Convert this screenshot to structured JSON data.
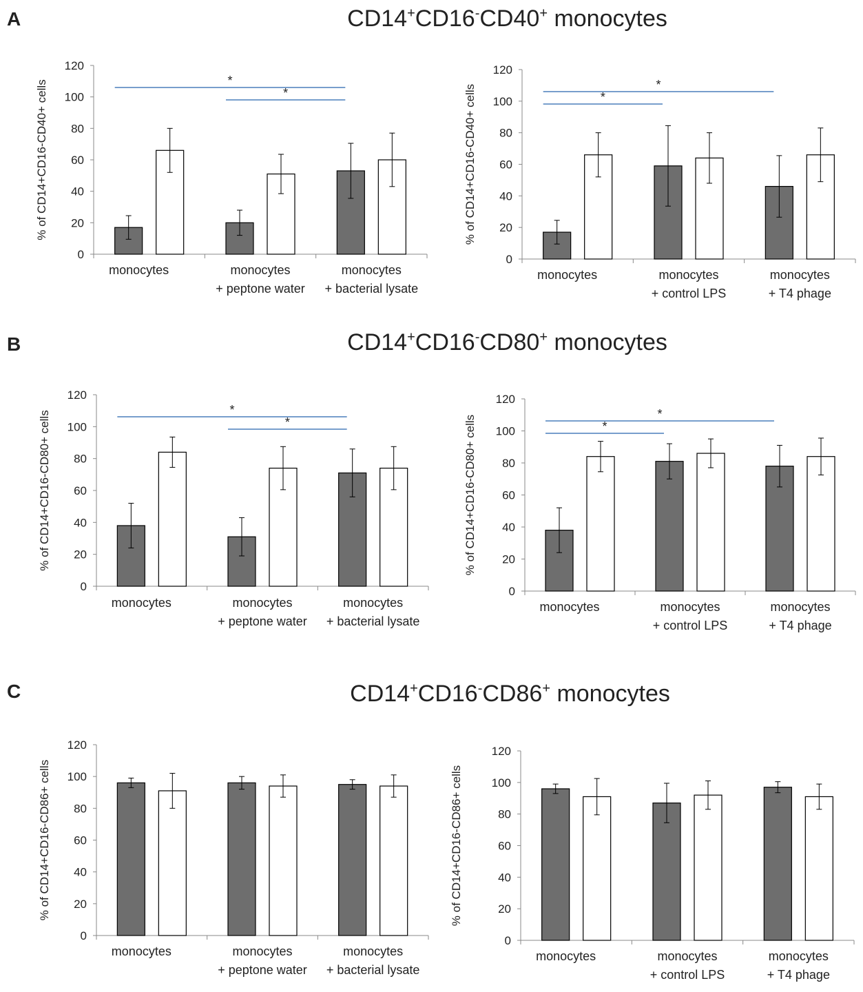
{
  "panels": [
    {
      "letter": "A",
      "title": {
        "a": "CD14",
        "sa": "+",
        "b": "CD16",
        "sb": "-",
        "c": "CD40",
        "sc": "+",
        "d": " monocytes"
      }
    },
    {
      "letter": "B",
      "title": {
        "a": "CD14",
        "sa": "+",
        "b": "CD16",
        "sb": "-",
        "c": "CD80",
        "sc": "+",
        "d": " monocytes"
      }
    },
    {
      "letter": "C",
      "title": {
        "a": "CD14",
        "sa": "+",
        "b": "CD16",
        "sb": "-",
        "c": "CD86",
        "sc": "+",
        "d": " monocytes"
      }
    }
  ],
  "colors": {
    "filled": "#6e6e6e",
    "open": "#ffffff",
    "bar_stroke": "#000000",
    "sig_line": "#4a7ebb",
    "axis": "#888888"
  },
  "chart_data": [
    {
      "id": "A-left",
      "type": "bar",
      "ylabel": "% of CD14+CD16-CD40+ cells",
      "ylim": [
        0,
        120
      ],
      "yticks": [
        0,
        20,
        40,
        60,
        80,
        100,
        120
      ],
      "categories": [
        [
          "monocytes"
        ],
        [
          "monocytes",
          "+ peptone water"
        ],
        [
          "monocytes",
          "+ bacterial lysate"
        ]
      ],
      "series": [
        {
          "name": "filled",
          "values": [
            17,
            20,
            53
          ],
          "errors": [
            7.5,
            8,
            17.5
          ]
        },
        {
          "name": "open",
          "values": [
            66,
            51,
            60
          ],
          "errors": [
            14,
            12.5,
            17
          ]
        }
      ],
      "significance": [
        {
          "from": 0,
          "to": 2,
          "level": 1,
          "label": "*"
        },
        {
          "from": 1,
          "to": 2,
          "level": 0,
          "label": "*"
        }
      ]
    },
    {
      "id": "A-right",
      "type": "bar",
      "ylabel": "% of CD14+CD16-CD40+ cells",
      "ylim": [
        0,
        120
      ],
      "yticks": [
        0,
        20,
        40,
        60,
        80,
        100,
        120
      ],
      "categories": [
        [
          "monocytes"
        ],
        [
          "monocytes",
          "+ control LPS"
        ],
        [
          "monocytes",
          "+ T4 phage"
        ]
      ],
      "series": [
        {
          "name": "filled",
          "values": [
            17,
            59,
            46
          ],
          "errors": [
            7.5,
            25.5,
            19.5
          ]
        },
        {
          "name": "open",
          "values": [
            66,
            64,
            66
          ],
          "errors": [
            14,
            16,
            17
          ]
        }
      ],
      "significance": [
        {
          "from": 0,
          "to": 2,
          "level": 1,
          "label": "*"
        },
        {
          "from": 0,
          "to": 1,
          "level": 0,
          "label": "*"
        }
      ]
    },
    {
      "id": "B-left",
      "type": "bar",
      "ylabel": "% of CD14+CD16-CD80+ cells",
      "ylim": [
        0,
        120
      ],
      "yticks": [
        0,
        20,
        40,
        60,
        80,
        100,
        120
      ],
      "categories": [
        [
          "monocytes"
        ],
        [
          "monocytes",
          "+ peptone water"
        ],
        [
          "monocytes",
          "+ bacterial lysate"
        ]
      ],
      "series": [
        {
          "name": "filled",
          "values": [
            38,
            31,
            71
          ],
          "errors": [
            14,
            12,
            15
          ]
        },
        {
          "name": "open",
          "values": [
            84,
            74,
            74
          ],
          "errors": [
            9.5,
            13.5,
            13.5
          ]
        }
      ],
      "significance": [
        {
          "from": 0,
          "to": 2,
          "level": 1,
          "label": "*"
        },
        {
          "from": 1,
          "to": 2,
          "level": 0,
          "label": "*"
        }
      ]
    },
    {
      "id": "B-right",
      "type": "bar",
      "ylabel": "% of CD14+CD16-CD80+ cells",
      "ylim": [
        0,
        120
      ],
      "yticks": [
        0,
        20,
        40,
        60,
        80,
        100,
        120
      ],
      "categories": [
        [
          "monocytes"
        ],
        [
          "monocytes",
          "+ control LPS"
        ],
        [
          "monocytes",
          "+ T4 phage"
        ]
      ],
      "series": [
        {
          "name": "filled",
          "values": [
            38,
            81,
            78
          ],
          "errors": [
            14,
            11,
            13
          ]
        },
        {
          "name": "open",
          "values": [
            84,
            86,
            84
          ],
          "errors": [
            9.5,
            9,
            11.5
          ]
        }
      ],
      "significance": [
        {
          "from": 0,
          "to": 2,
          "level": 1,
          "label": "*"
        },
        {
          "from": 0,
          "to": 1,
          "level": 0,
          "label": "*"
        }
      ]
    },
    {
      "id": "C-left",
      "type": "bar",
      "ylabel": "% of CD14+CD16-CD86+ cells",
      "ylim": [
        0,
        120
      ],
      "yticks": [
        0,
        20,
        40,
        60,
        80,
        100,
        120
      ],
      "categories": [
        [
          "monocytes"
        ],
        [
          "monocytes",
          "+ peptone water"
        ],
        [
          "monocytes",
          "+ bacterial lysate"
        ]
      ],
      "series": [
        {
          "name": "filled",
          "values": [
            96,
            96,
            95
          ],
          "errors": [
            3,
            4,
            3
          ]
        },
        {
          "name": "open",
          "values": [
            91,
            94,
            94
          ],
          "errors": [
            11,
            7,
            7
          ]
        }
      ],
      "significance": []
    },
    {
      "id": "C-right",
      "type": "bar",
      "ylabel": "% of CD14+CD16-CD86+ cells",
      "ylim": [
        0,
        120
      ],
      "yticks": [
        0,
        20,
        40,
        60,
        80,
        100,
        120
      ],
      "categories": [
        [
          "monocytes"
        ],
        [
          "monocytes",
          "+ control LPS"
        ],
        [
          "monocytes",
          "+ T4 phage"
        ]
      ],
      "series": [
        {
          "name": "filled",
          "values": [
            96,
            87,
            97
          ],
          "errors": [
            3,
            12.5,
            3.5
          ]
        },
        {
          "name": "open",
          "values": [
            91,
            92,
            91
          ],
          "errors": [
            11.5,
            9,
            8
          ]
        }
      ],
      "significance": []
    }
  ]
}
